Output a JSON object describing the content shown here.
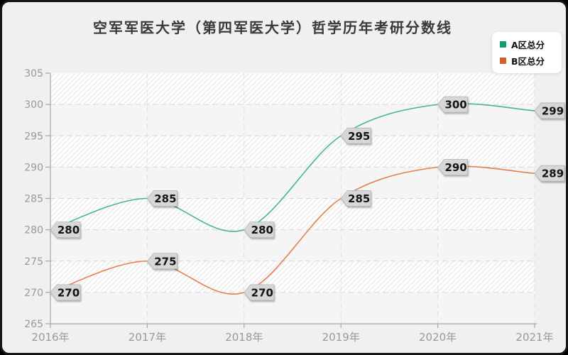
{
  "page": {
    "background": "#f0f0f0",
    "border_color": "#161616"
  },
  "chart_data": {
    "type": "line",
    "title": "空军军医大学（第四军医大学）哲学历年考研分数线",
    "categories": [
      "2016年",
      "2017年",
      "2018年",
      "2019年",
      "2020年",
      "2021年"
    ],
    "series": [
      {
        "name": "A区总分",
        "values": [
          280,
          285,
          280,
          295,
          300,
          299
        ],
        "line_color": "#3fb98d",
        "marker_color": "#0f9d6a"
      },
      {
        "name": "B区总分",
        "values": [
          270,
          275,
          270,
          285,
          290,
          289
        ],
        "line_color": "#e57e4c",
        "marker_color": "#d2602b"
      }
    ],
    "ylim": [
      265,
      305
    ],
    "ytick_step": 5,
    "yticks": [
      265,
      270,
      275,
      280,
      285,
      290,
      295,
      300,
      305
    ],
    "xlabel": "",
    "ylabel": "",
    "grid": true,
    "grid_style": "dashed",
    "legend_position": "top-right",
    "point_labels_visible": true,
    "point_label_bg": "#d7d7d7",
    "curve": "smooth"
  }
}
